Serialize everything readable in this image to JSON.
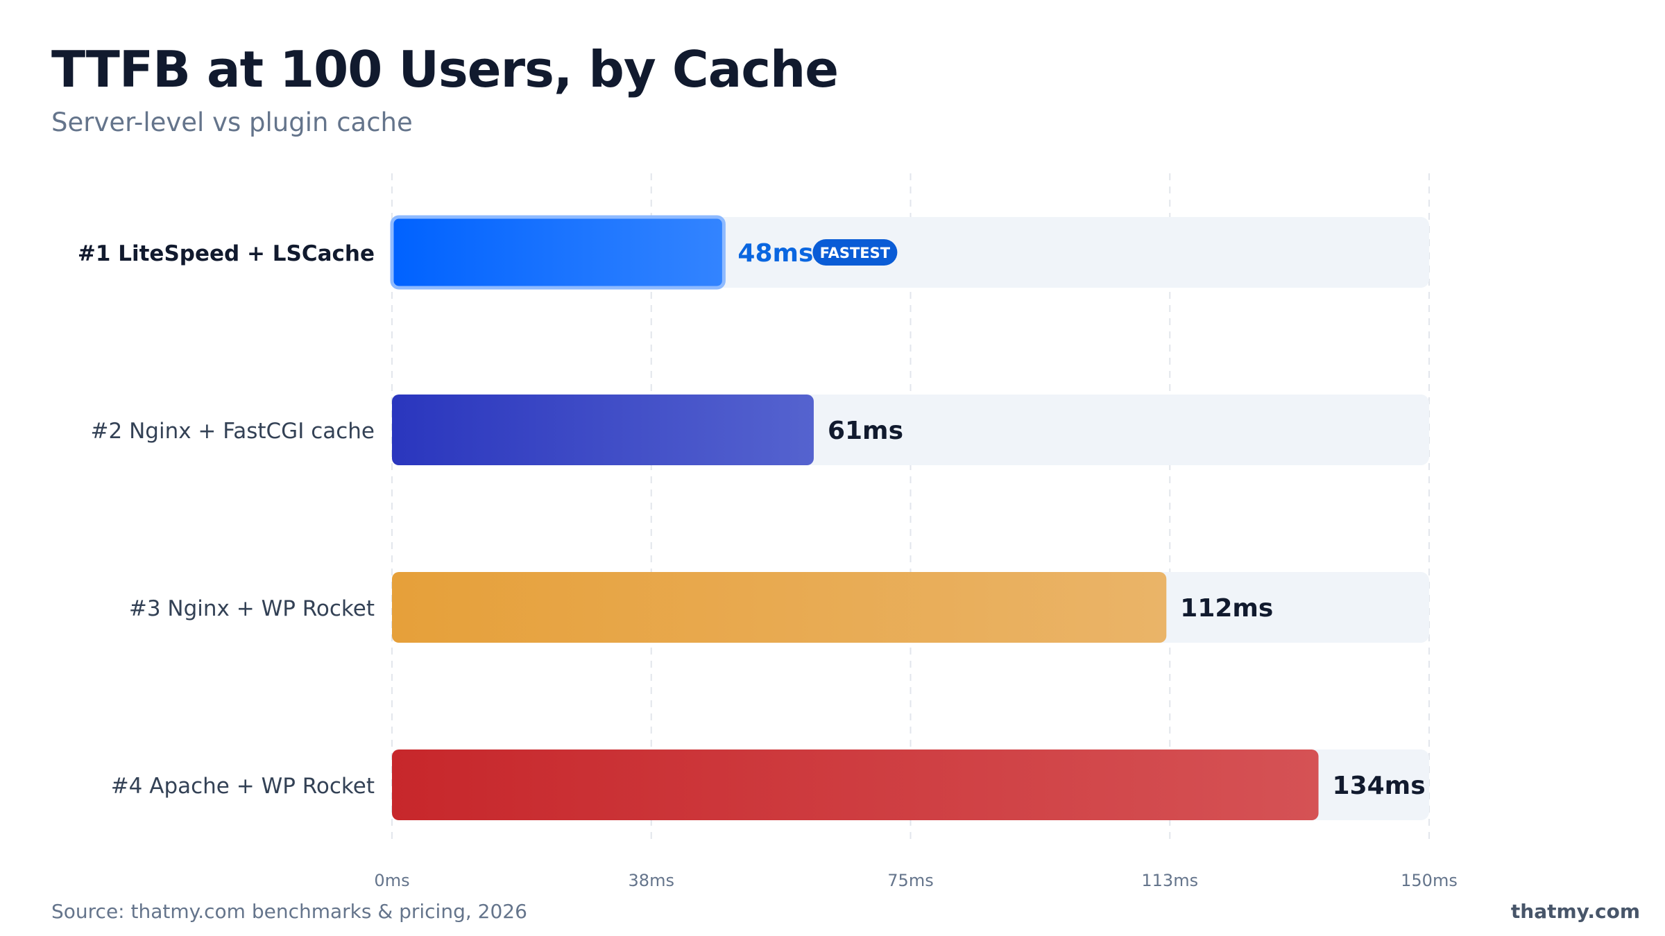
{
  "title": "TTFB at 100 Users, by Cache",
  "subtitle": "Server-level vs plugin cache",
  "source": "Source: thatmy.com benchmarks & pricing, 2026",
  "brand": "thatmy.com",
  "chart_data": {
    "type": "bar",
    "orientation": "horizontal",
    "unit": "ms",
    "xlim": [
      0,
      150
    ],
    "ticks": [
      "0ms",
      "38ms",
      "75ms",
      "113ms",
      "150ms"
    ],
    "tick_values": [
      0,
      37.5,
      75,
      112.5,
      150
    ],
    "grid": true,
    "categories": [
      "#1  LiteSpeed + LSCache",
      "#2  Nginx + FastCGI cache",
      "#3  Nginx + WP Rocket",
      "#4  Apache + WP Rocket"
    ],
    "values": [
      48,
      61,
      112,
      134
    ],
    "value_labels": [
      "48ms",
      "61ms",
      "112ms",
      "134ms"
    ],
    "badge": {
      "index": 0,
      "text": "FASTEST"
    },
    "colors": [
      [
        "#0062ff",
        "#3384ff"
      ],
      [
        "#2a36be",
        "#5563cf"
      ],
      [
        "#e6a03a",
        "#eab468"
      ],
      [
        "#c7272b",
        "#d55255"
      ]
    ],
    "label_colors": [
      "#0a66e0",
      "#111a2e",
      "#111a2e",
      "#111a2e"
    ],
    "track_color": "#f0f4f9"
  }
}
